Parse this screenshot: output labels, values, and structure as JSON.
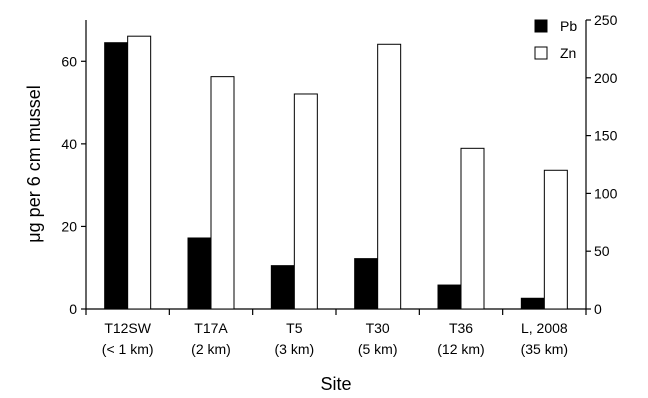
{
  "chart_data": {
    "type": "bar",
    "xlabel": "Site",
    "ylabel": "μg per 6 cm mussel",
    "categories": [
      {
        "line1": "T12SW",
        "line2": "(< 1 km)"
      },
      {
        "line1": "T17A",
        "line2": "(2 km)"
      },
      {
        "line1": "T5",
        "line2": "(3 km)"
      },
      {
        "line1": "T30",
        "line2": "(5 km)"
      },
      {
        "line1": "T36",
        "line2": "(12 km)"
      },
      {
        "line1": "L, 2008",
        "line2": "(35 km)"
      }
    ],
    "series": [
      {
        "name": "Pb",
        "axis": "left",
        "color": "#000000",
        "values": [
          64.5,
          17.2,
          10.5,
          12.2,
          5.8,
          2.6
        ]
      },
      {
        "name": "Zn",
        "axis": "right",
        "color": "#ffffff",
        "values": [
          236,
          201,
          186,
          229,
          139,
          120
        ]
      }
    ],
    "y_left": {
      "min": 0,
      "max": 70,
      "ticks": [
        0,
        20,
        40,
        60
      ]
    },
    "y_right": {
      "min": 0,
      "max": 250,
      "ticks": [
        0,
        50,
        100,
        150,
        200,
        250
      ]
    },
    "legend_position": "top-right",
    "grid": false
  }
}
